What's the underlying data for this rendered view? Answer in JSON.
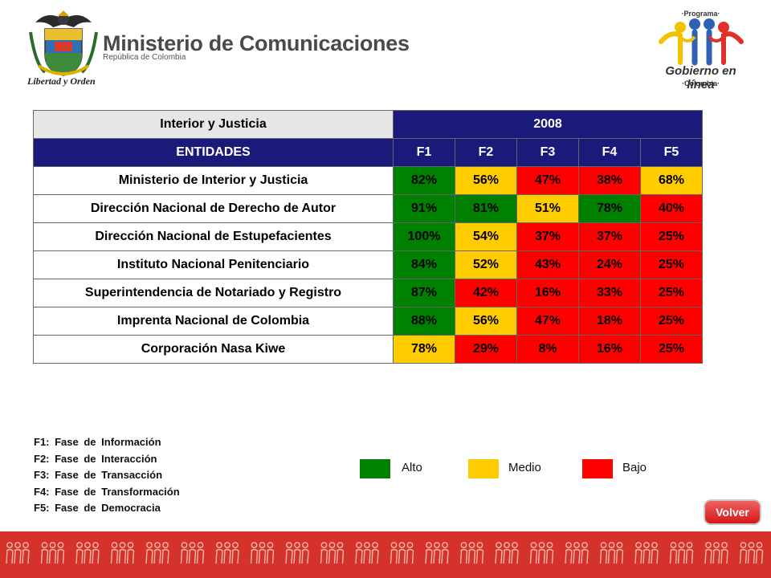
{
  "header": {
    "ministry_title": "Ministerio de Comunicaciones",
    "ministry_subtitle": "República de Colombia",
    "motto": "Libertad y Orden",
    "program_top": "·Programa·",
    "program_name": "Gobierno en línea",
    "program_country": "·Colombia·"
  },
  "table": {
    "group_title": "Interior y Justicia",
    "year": "2008",
    "col_entities": "ENTIDADES",
    "phase_headers": [
      "F1",
      "F2",
      "F3",
      "F4",
      "F5"
    ],
    "rows": [
      {
        "name": "Ministerio de Interior y Justicia",
        "values": [
          "82%",
          "56%",
          "47%",
          "38%",
          "68%"
        ],
        "levels": [
          "alto",
          "medio",
          "bajo",
          "bajo",
          "medio"
        ]
      },
      {
        "name": "Dirección Nacional de Derecho de Autor",
        "values": [
          "91%",
          "81%",
          "51%",
          "78%",
          "40%"
        ],
        "levels": [
          "alto",
          "alto",
          "medio",
          "alto",
          "bajo"
        ]
      },
      {
        "name": "Dirección Nacional de Estupefacientes",
        "values": [
          "100%",
          "54%",
          "37%",
          "37%",
          "25%"
        ],
        "levels": [
          "alto",
          "medio",
          "bajo",
          "bajo",
          "bajo"
        ]
      },
      {
        "name": "Instituto Nacional Penitenciario",
        "values": [
          "84%",
          "52%",
          "43%",
          "24%",
          "25%"
        ],
        "levels": [
          "alto",
          "medio",
          "bajo",
          "bajo",
          "bajo"
        ]
      },
      {
        "name": "Superintendencia de Notariado y Registro",
        "values": [
          "87%",
          "42%",
          "16%",
          "33%",
          "25%"
        ],
        "levels": [
          "alto",
          "bajo",
          "bajo",
          "bajo",
          "bajo"
        ]
      },
      {
        "name": "Imprenta Nacional de Colombia",
        "values": [
          "88%",
          "56%",
          "47%",
          "18%",
          "25%"
        ],
        "levels": [
          "alto",
          "medio",
          "bajo",
          "bajo",
          "bajo"
        ]
      },
      {
        "name": "Corporación Nasa Kiwe",
        "values": [
          "78%",
          "29%",
          "8%",
          "16%",
          "25%"
        ],
        "levels": [
          "medio",
          "bajo",
          "bajo",
          "bajo",
          "bajo"
        ]
      }
    ]
  },
  "phases": [
    "F1: Fase de Información",
    "F2: Fase de Interacción",
    "F3: Fase de Transacción",
    "F4: Fase de Transformación",
    "F5: Fase de Democracia"
  ],
  "legend": [
    {
      "label": "Alto",
      "color": "#008000"
    },
    {
      "label": "Medio",
      "color": "#ffcc00"
    },
    {
      "label": "Bajo",
      "color": "#ff0000"
    }
  ],
  "buttons": {
    "volver": "Volver"
  },
  "colors": {
    "alto": "#008000",
    "medio": "#ffcc00",
    "bajo": "#ff0000",
    "header_blue": "#1a1a7a",
    "footer_red": "#d4322a"
  }
}
